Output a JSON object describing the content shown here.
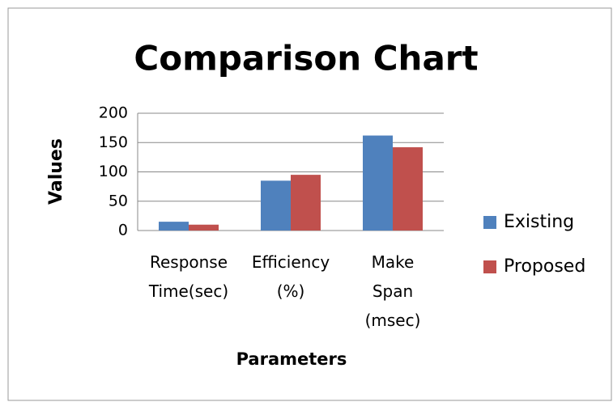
{
  "chart_data": {
    "type": "bar",
    "title": "Comparison Chart",
    "x_label": "Parameters",
    "y_label": "Values",
    "categories": [
      "Response Time(sec)",
      "Efficiency (%)",
      "Make Span (msec)"
    ],
    "series": [
      {
        "name": "Existing",
        "color": "#4f81bd",
        "values": [
          15,
          85,
          162
        ]
      },
      {
        "name": "Proposed",
        "color": "#c0504d",
        "values": [
          10,
          95,
          142
        ]
      }
    ],
    "ylim": [
      0,
      200
    ],
    "yticks": [
      0,
      50,
      100,
      150,
      200
    ],
    "grid": true,
    "legend": "right"
  }
}
